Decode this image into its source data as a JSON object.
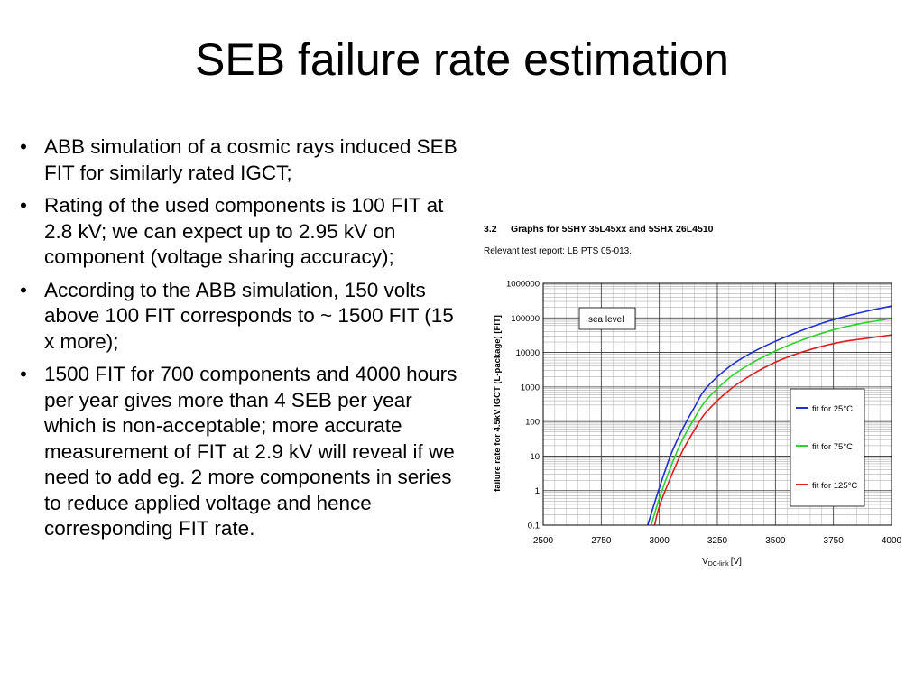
{
  "slide": {
    "title": "SEB failure rate estimation",
    "bullet_symbol": "•",
    "bullets": [
      "ABB simulation of a cosmic rays induced SEB FIT for similarly rated IGCT;",
      "Rating of the used components is 100 FIT at 2.8 kV; we can expect up to 2.95 kV on component (voltage sharing accuracy);",
      "According to the ABB simulation, 150 volts above 100 FIT corresponds to ~ 1500 FIT (15 x more);",
      "1500 FIT for 700 components and 4000 hours per year gives more than 4 SEB per year which is non-acceptable; more accurate measurement of FIT at 2.9 kV will reveal if we need to add eg. 2 more components in series to reduce applied voltage and hence corresponding FIT rate."
    ]
  },
  "figure": {
    "section_number": "3.2",
    "heading": "Graphs for 5SHY 35L45xx and 5SHX 26L4510",
    "subheading": "Relevant test report: LB PTS 05-013."
  },
  "chart_data": {
    "type": "line",
    "title": "",
    "ylabel": "failure rate for 4.5kV IGCT (L-package) [FIT]",
    "xlabel_main": "V",
    "xlabel_sub": "DC-link",
    "xlabel_unit": "[V]",
    "xlim": [
      2500,
      4000
    ],
    "ylim": [
      0.1,
      1000000
    ],
    "y_scale": "log",
    "grid": true,
    "x_ticks": [
      2500,
      2750,
      3000,
      3250,
      3500,
      3750,
      4000
    ],
    "x_tick_labels": [
      "2500",
      "2750",
      "3000",
      "3250",
      "3500",
      "3750",
      "4000"
    ],
    "y_ticks": [
      0.1,
      1,
      10,
      100,
      1000,
      10000,
      100000,
      1000000
    ],
    "y_tick_labels": [
      "0.1",
      "1",
      "10",
      "100",
      "1000",
      "10000",
      "100000",
      "1000000"
    ],
    "annotation": "sea level",
    "legend_position": "lower-right",
    "series": [
      {
        "name": "fit for 25°C",
        "color": "#1f2fd0",
        "x": [
          2950,
          3000,
          3050,
          3100,
          3150,
          3200,
          3300,
          3400,
          3500,
          3600,
          3700,
          3800,
          3900,
          4000
        ],
        "y": [
          0.1,
          1.2,
          11,
          60,
          250,
          900,
          3800,
          10000,
          21000,
          40000,
          70000,
          110000,
          160000,
          220000
        ]
      },
      {
        "name": "fit for 75°C",
        "color": "#2ad42a",
        "x": [
          2965,
          3000,
          3050,
          3100,
          3150,
          3200,
          3300,
          3400,
          3500,
          3600,
          3700,
          3800,
          3900,
          4000
        ],
        "y": [
          0.1,
          0.6,
          5,
          30,
          120,
          400,
          1800,
          5000,
          11000,
          21000,
          36000,
          55000,
          75000,
          95000
        ]
      },
      {
        "name": "fit for 125°C",
        "color": "#e31d1d",
        "x": [
          2980,
          3000,
          3050,
          3100,
          3150,
          3200,
          3300,
          3400,
          3500,
          3600,
          3700,
          3800,
          3900,
          4000
        ],
        "y": [
          0.1,
          0.35,
          2.5,
          14,
          55,
          180,
          800,
          2300,
          5200,
          9500,
          15000,
          21000,
          26000,
          32000
        ]
      }
    ]
  }
}
